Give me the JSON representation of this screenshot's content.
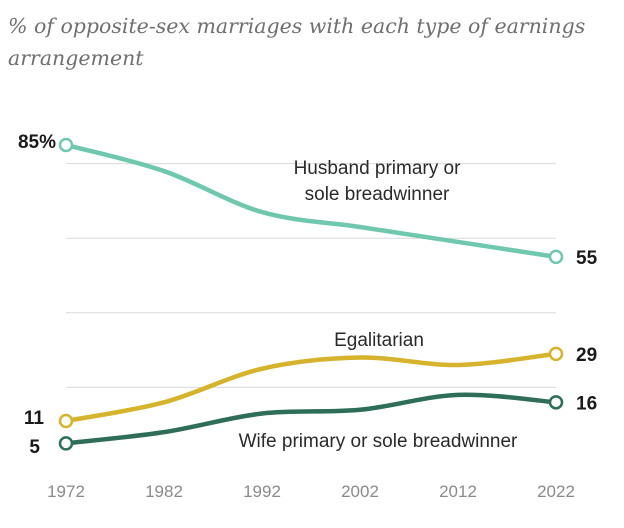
{
  "header": {
    "subtitle": "% of opposite-sex marriages with each type of earnings arrangement"
  },
  "chart_data": {
    "type": "line",
    "title": "",
    "subtitle": "% of opposite-sex marriages with each type of earnings arrangement",
    "xlabel": "",
    "ylabel": "",
    "x": [
      1972,
      1982,
      1992,
      2002,
      2012,
      2022
    ],
    "x_tick_labels": [
      "1972",
      "1982",
      "1992",
      "2002",
      "2012",
      "2022"
    ],
    "ylim": [
      0,
      90
    ],
    "grid": true,
    "legend": "direct labels",
    "series": [
      {
        "name": "Husband primary or sole breadwinner",
        "label_lines": [
          "Husband primary or",
          "sole breadwinner"
        ],
        "color": "#6fc8ae",
        "values": [
          85,
          78,
          67,
          63,
          59,
          55
        ],
        "start_label": "85%",
        "end_label": "55"
      },
      {
        "name": "Egalitarian",
        "label_lines": [
          "Egalitarian"
        ],
        "color": "#d6b32c",
        "values": [
          11,
          16,
          25,
          28,
          26,
          29
        ],
        "start_label": "11",
        "end_label": "29"
      },
      {
        "name": "Wife primary or sole breadwinner",
        "label_lines": [
          "Wife primary or sole breadwinner"
        ],
        "color": "#2e6e58",
        "values": [
          5,
          8,
          13,
          14,
          18,
          16
        ],
        "start_label": "5",
        "end_label": "16"
      }
    ]
  }
}
